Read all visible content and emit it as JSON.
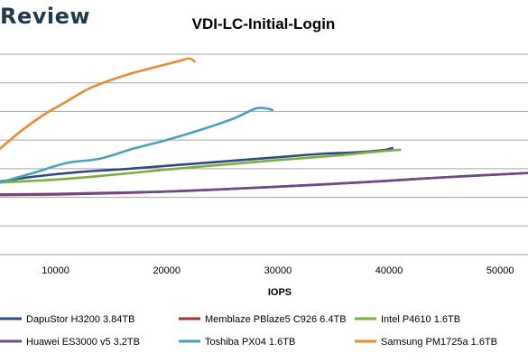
{
  "brand": {
    "text": "Review"
  },
  "chart_data": {
    "type": "line",
    "title": "VDI-LC-Initial-Login",
    "xlabel": "IOPS",
    "ylabel": "",
    "xlim": [
      5000,
      52500
    ],
    "ylim": [
      0,
      7
    ],
    "x_ticks": [
      10000,
      20000,
      30000,
      40000,
      50000
    ],
    "x_tick_labels": [
      "10000",
      "20000",
      "30000",
      "40000",
      "50000"
    ],
    "grid": "horizontal",
    "legend_position": "bottom",
    "series": [
      {
        "name": "DapuStor H3200 3.84TB",
        "color": "#2e4a7e",
        "x": [
          5000,
          8000,
          12000,
          16000,
          20000,
          25000,
          30000,
          34000,
          37000,
          39500,
          40300
        ],
        "y": [
          2.55,
          2.72,
          2.88,
          2.98,
          3.1,
          3.25,
          3.4,
          3.52,
          3.57,
          3.65,
          3.72
        ]
      },
      {
        "name": "Memblaze PBlaze5 C926 6.4TB",
        "color": "#9c3333",
        "x": [
          5000,
          10000,
          15000,
          20000,
          25000,
          30000,
          35000,
          40000,
          45000,
          50000,
          52500
        ],
        "y": [
          2.08,
          2.1,
          2.14,
          2.2,
          2.28,
          2.37,
          2.47,
          2.58,
          2.7,
          2.8,
          2.85
        ]
      },
      {
        "name": "Intel P4610 1.6TB",
        "color": "#7fae3f",
        "x": [
          5000,
          10000,
          15000,
          20000,
          25000,
          30000,
          35000,
          39000,
          41000
        ],
        "y": [
          2.52,
          2.62,
          2.78,
          2.97,
          3.14,
          3.3,
          3.45,
          3.6,
          3.66
        ]
      },
      {
        "name": "Huawei ES3000 v5 3.2TB",
        "color": "#6b4a8a",
        "x": [
          5000,
          10000,
          15000,
          20000,
          25000,
          30000,
          35000,
          40000,
          45000,
          50000,
          52500
        ],
        "y": [
          2.1,
          2.12,
          2.16,
          2.2,
          2.28,
          2.37,
          2.47,
          2.58,
          2.7,
          2.8,
          2.85
        ]
      },
      {
        "name": "Toshiba PX04 1.6TB",
        "color": "#4aa3b5",
        "x": [
          5000,
          8000,
          11000,
          14000,
          17000,
          20000,
          23000,
          26000,
          28000,
          29000,
          29500
        ],
        "y": [
          2.52,
          2.85,
          3.2,
          3.35,
          3.7,
          4.0,
          4.35,
          4.75,
          5.1,
          5.1,
          5.05
        ]
      },
      {
        "name": "Samsung PM1725a 1.6TB",
        "color": "#e88b3a",
        "x": [
          5000,
          7000,
          9000,
          11000,
          13000,
          15000,
          17000,
          19000,
          21000,
          22000,
          22500
        ],
        "y": [
          3.7,
          4.35,
          4.9,
          5.35,
          5.8,
          6.1,
          6.35,
          6.55,
          6.75,
          6.85,
          6.75
        ]
      }
    ]
  }
}
